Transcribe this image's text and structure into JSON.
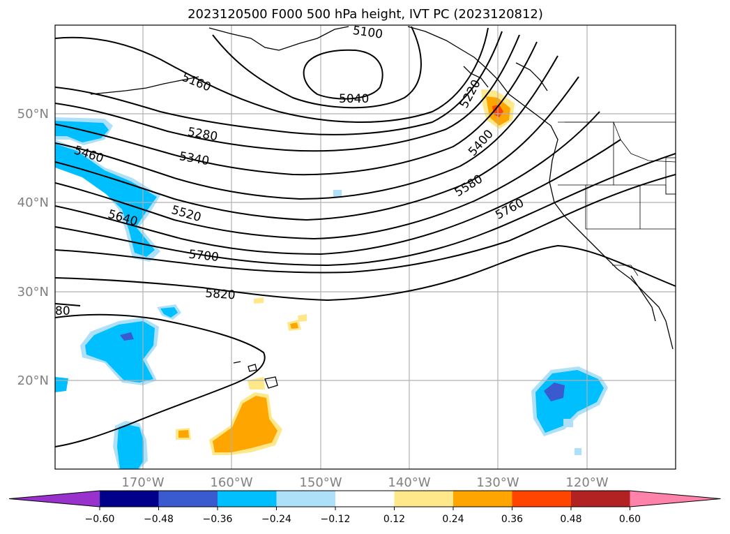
{
  "title": "2023120500 F000 500 hPa height, IVT PC (2023120812)",
  "lat_labels": [
    "50°N",
    "40°N",
    "30°N",
    "20°N"
  ],
  "lon_labels": [
    "170°W",
    "160°W",
    "150°W",
    "140°W",
    "130°W",
    "120°W"
  ],
  "contour_labels": [
    "5100",
    "5040",
    "5160",
    "5220",
    "5280",
    "5340",
    "5400",
    "5460",
    "5520",
    "5580",
    "5640",
    "5700",
    "5760",
    "5820",
    "80"
  ],
  "colorbar": {
    "ticks": [
      "−0.60",
      "−0.48",
      "−0.36",
      "−0.24",
      "−0.12",
      "0.12",
      "0.24",
      "0.36",
      "0.48",
      "0.60"
    ],
    "colors": [
      "#9932cc",
      "#00008b",
      "#3a5bd0",
      "#00bfff",
      "#aee0fa",
      "#ffffff",
      "#ffe88a",
      "#ffa500",
      "#ff4500",
      "#b22222",
      "#ff82ab"
    ]
  },
  "map_colors": {
    "strong_negative": "#3a5bd0",
    "negative": "#00bfff",
    "weak_negative": "#aee0fa",
    "weak_positive": "#ffe88a",
    "positive": "#ffa500",
    "strong_positive": "#ff4500"
  }
}
